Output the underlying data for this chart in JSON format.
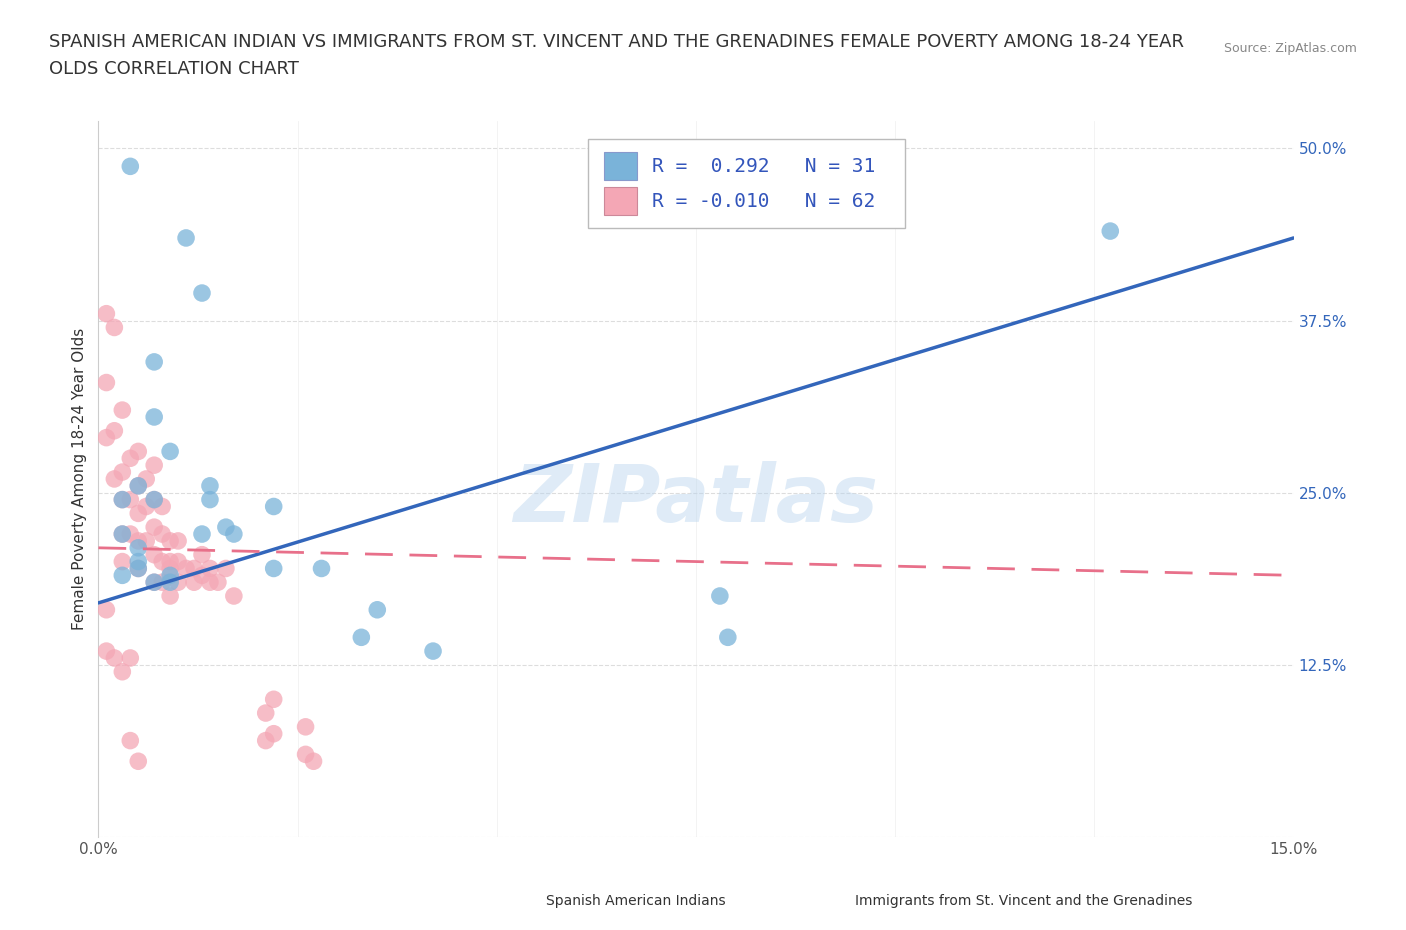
{
  "title_line1": "SPANISH AMERICAN INDIAN VS IMMIGRANTS FROM ST. VINCENT AND THE GRENADINES FEMALE POVERTY AMONG 18-24 YEAR",
  "title_line2": "OLDS CORRELATION CHART",
  "source": "Source: ZipAtlas.com",
  "ylabel": "Female Poverty Among 18-24 Year Olds",
  "xlim": [
    0.0,
    0.15
  ],
  "ylim": [
    0.0,
    0.52
  ],
  "ytick_positions": [
    0.0,
    0.125,
    0.25,
    0.375,
    0.5
  ],
  "ytick_labels": [
    "",
    "12.5%",
    "25.0%",
    "37.5%",
    "50.0%"
  ],
  "grid_color": "#dddddd",
  "background_color": "#ffffff",
  "blue_color": "#7ab3d9",
  "pink_color": "#f4a7b5",
  "blue_line_color": "#3366bb",
  "pink_line_color": "#e8708a",
  "watermark": "ZIPatlas",
  "legend_R1": "R =  0.292",
  "legend_N1": "N = 31",
  "legend_R2": "R = -0.010",
  "legend_N2": "N = 62",
  "legend_label1": "Spanish American Indians",
  "legend_label2": "Immigrants from St. Vincent and the Grenadines",
  "blue_scatter_x": [
    0.004,
    0.011,
    0.013,
    0.007,
    0.007,
    0.009,
    0.005,
    0.014,
    0.007,
    0.013,
    0.014,
    0.016,
    0.003,
    0.003,
    0.005,
    0.005,
    0.005,
    0.003,
    0.007,
    0.009,
    0.009,
    0.017,
    0.022,
    0.022,
    0.028,
    0.035,
    0.042,
    0.079,
    0.078,
    0.033,
    0.127
  ],
  "blue_scatter_y": [
    0.487,
    0.435,
    0.395,
    0.345,
    0.305,
    0.28,
    0.255,
    0.255,
    0.245,
    0.22,
    0.245,
    0.225,
    0.245,
    0.22,
    0.21,
    0.2,
    0.195,
    0.19,
    0.185,
    0.19,
    0.185,
    0.22,
    0.24,
    0.195,
    0.195,
    0.165,
    0.135,
    0.145,
    0.175,
    0.145,
    0.44
  ],
  "pink_scatter_x": [
    0.001,
    0.001,
    0.001,
    0.002,
    0.002,
    0.002,
    0.003,
    0.003,
    0.003,
    0.003,
    0.003,
    0.004,
    0.004,
    0.004,
    0.005,
    0.005,
    0.005,
    0.005,
    0.005,
    0.006,
    0.006,
    0.006,
    0.007,
    0.007,
    0.007,
    0.007,
    0.007,
    0.008,
    0.008,
    0.008,
    0.008,
    0.009,
    0.009,
    0.009,
    0.009,
    0.01,
    0.01,
    0.01,
    0.011,
    0.012,
    0.012,
    0.013,
    0.013,
    0.014,
    0.014,
    0.015,
    0.016,
    0.017,
    0.021,
    0.021,
    0.022,
    0.022,
    0.026,
    0.026,
    0.027,
    0.001,
    0.001,
    0.002,
    0.003,
    0.004,
    0.004,
    0.005
  ],
  "pink_scatter_y": [
    0.38,
    0.33,
    0.29,
    0.37,
    0.295,
    0.26,
    0.31,
    0.265,
    0.245,
    0.22,
    0.2,
    0.275,
    0.245,
    0.22,
    0.28,
    0.255,
    0.235,
    0.215,
    0.195,
    0.26,
    0.24,
    0.215,
    0.27,
    0.245,
    0.225,
    0.205,
    0.185,
    0.24,
    0.22,
    0.2,
    0.185,
    0.215,
    0.2,
    0.195,
    0.175,
    0.215,
    0.2,
    0.185,
    0.195,
    0.195,
    0.185,
    0.205,
    0.19,
    0.195,
    0.185,
    0.185,
    0.195,
    0.175,
    0.09,
    0.07,
    0.1,
    0.075,
    0.08,
    0.06,
    0.055,
    0.165,
    0.135,
    0.13,
    0.12,
    0.13,
    0.07,
    0.055
  ],
  "blue_line_x": [
    0.0,
    0.15
  ],
  "blue_line_y": [
    0.17,
    0.435
  ],
  "pink_line_x": [
    0.0,
    0.15
  ],
  "pink_line_y": [
    0.21,
    0.19
  ],
  "title_fontsize": 13,
  "axis_label_fontsize": 11,
  "tick_fontsize": 11,
  "legend_fontsize": 14
}
